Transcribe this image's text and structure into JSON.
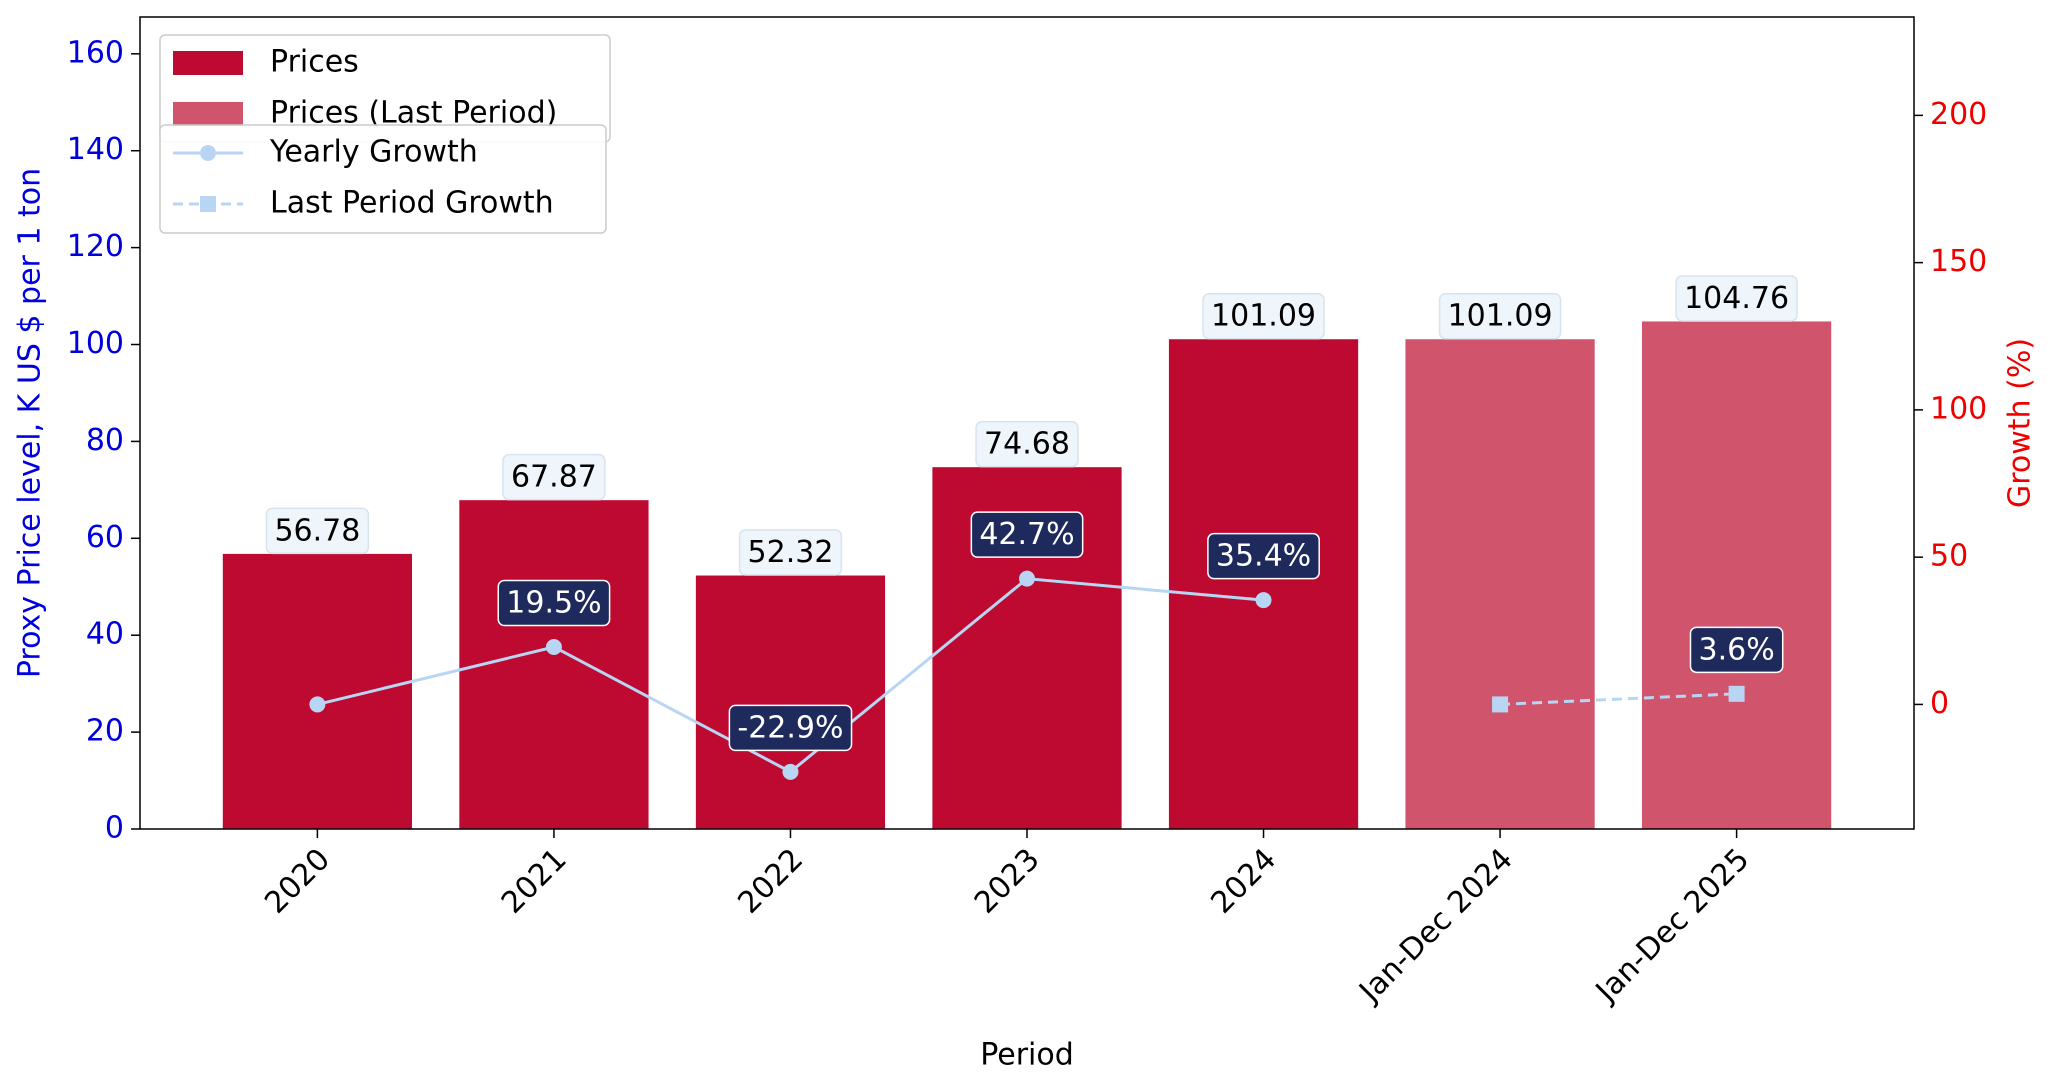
{
  "chart_data": {
    "type": "bar",
    "x_label": "Period",
    "y_label": "Proxy Price level, K US $ per 1 ton",
    "y2_label": "Growth (%)",
    "categories": [
      "2020",
      "2021",
      "2022",
      "2023",
      "2024",
      "Jan-Dec 2024",
      "Jan-Dec 2025"
    ],
    "ylim": [
      0,
      167.6
    ],
    "yticks": [
      0,
      20,
      40,
      60,
      80,
      100,
      120,
      140,
      160
    ],
    "y2lim": [
      -42.3,
      233.4
    ],
    "y2ticks": [
      0,
      50,
      100,
      150,
      200
    ],
    "y_color": "#0000dd",
    "y2_color": "#ee0000",
    "legend": "upper left",
    "series": [
      {
        "name": "Prices",
        "type": "bar",
        "color": "#be0a30",
        "values": [
          56.78,
          67.87,
          52.32,
          74.68,
          101.09,
          null,
          null
        ]
      },
      {
        "name": "Prices (Last Period)",
        "type": "bar",
        "color": "#d0546c",
        "values": [
          null,
          null,
          null,
          null,
          null,
          101.09,
          104.76
        ]
      },
      {
        "name": "Yearly Growth",
        "type": "line",
        "axis": "y2",
        "marker": "circle",
        "dashed": false,
        "color": "#b8d6f4",
        "values": [
          0,
          19.5,
          -22.9,
          42.7,
          35.4,
          null,
          null
        ],
        "value_labels": [
          null,
          "19.5%",
          "-22.9%",
          "42.7%",
          "35.4%",
          null,
          null
        ]
      },
      {
        "name": "Last Period Growth",
        "type": "line",
        "axis": "y2",
        "marker": "square",
        "dashed": true,
        "color": "#b8d6f4",
        "values": [
          null,
          null,
          null,
          null,
          null,
          0,
          3.6
        ],
        "value_labels": [
          null,
          null,
          null,
          null,
          null,
          null,
          "3.6%"
        ]
      }
    ]
  }
}
